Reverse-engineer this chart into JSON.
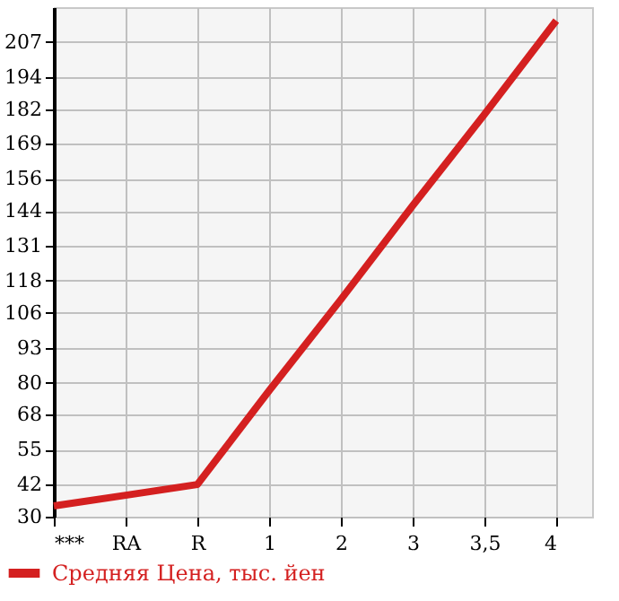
{
  "chart_data": {
    "type": "line",
    "categories": [
      "***",
      "RA",
      "R",
      "1",
      "2",
      "3",
      "3,5",
      "4"
    ],
    "series": [
      {
        "name": "Средняя Цена, тыс. йен",
        "color": "#d42020",
        "values": [
          34,
          38,
          42,
          77,
          111,
          146,
          180,
          215
        ]
      }
    ],
    "ylim": [
      30,
      220
    ],
    "yticks": [
      30,
      42,
      55,
      68,
      80,
      93,
      106,
      118,
      131,
      144,
      156,
      169,
      182,
      194,
      207
    ],
    "grid": true,
    "legend": "bottom left",
    "marker": "none",
    "line_style": "solid"
  }
}
